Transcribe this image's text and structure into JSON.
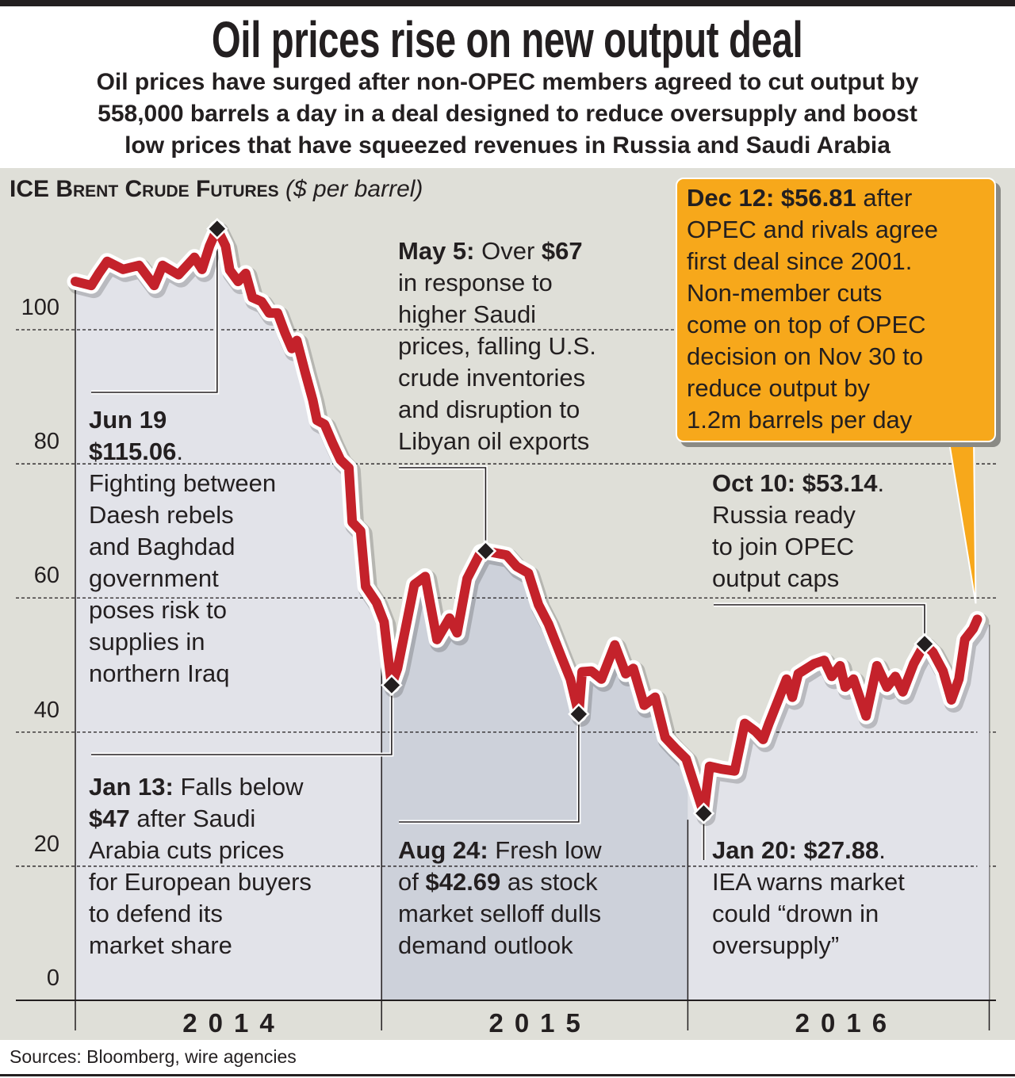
{
  "title": "Oil prices rise on new output deal",
  "subtitle_lines": [
    "Oil prices have surged after non-OPEC members agreed to cut output by",
    "558,000 barrels a day in a deal designed to reduce oversupply and boost",
    "low prices that have squeezed revenues in Russia and Saudi Arabia"
  ],
  "source": "Sources: Bloomberg, wire agencies",
  "colors": {
    "line": "#c4222b",
    "panel": "#dfdfd8",
    "fill_2014": "#e2e3e9",
    "fill_2015": "#cdd1da",
    "fill_2016": "#e2e3e9",
    "callout": "#f7a81b",
    "marker": "#231f20"
  },
  "chart_data": {
    "type": "line",
    "title": "ICE Brent Crude Futures",
    "ylabel": "($ per barrel)",
    "ylim": [
      0,
      120
    ],
    "yticks": [
      0,
      20,
      40,
      60,
      80,
      100
    ],
    "xlim": [
      "2014-01-01",
      "2017-01-01"
    ],
    "x_categories": [
      "2014",
      "2015",
      "2016"
    ],
    "grid": "horizontal dashed",
    "series": [
      {
        "points": [
          [
            "2014-01-01",
            107.2
          ],
          [
            "2014-01-20",
            106.6
          ],
          [
            "2014-01-29",
            108.4
          ],
          [
            "2014-02-08",
            110.2
          ],
          [
            "2014-02-27",
            109.0
          ],
          [
            "2014-03-18",
            109.6
          ],
          [
            "2014-04-05",
            106.6
          ],
          [
            "2014-04-15",
            109.6
          ],
          [
            "2014-05-04",
            108.2
          ],
          [
            "2014-05-23",
            110.8
          ],
          [
            "2014-06-01",
            109.0
          ],
          [
            "2014-06-10",
            112.5
          ],
          [
            "2014-06-19",
            115.06
          ],
          [
            "2014-06-29",
            112.5
          ],
          [
            "2014-07-04",
            108.9
          ],
          [
            "2014-07-14",
            107.2
          ],
          [
            "2014-07-23",
            108.4
          ],
          [
            "2014-07-31",
            104.8
          ],
          [
            "2014-08-11",
            104.2
          ],
          [
            "2014-08-20",
            102.5
          ],
          [
            "2014-08-30",
            102.5
          ],
          [
            "2014-09-08",
            99.5
          ],
          [
            "2014-09-16",
            97.2
          ],
          [
            "2014-09-22",
            98.4
          ],
          [
            "2014-10-02",
            93.6
          ],
          [
            "2014-10-11",
            89.5
          ],
          [
            "2014-10-16",
            86.5
          ],
          [
            "2014-10-25",
            85.9
          ],
          [
            "2014-11-04",
            83.0
          ],
          [
            "2014-11-13",
            80.6
          ],
          [
            "2014-11-23",
            79.4
          ],
          [
            "2014-11-27",
            71.3
          ],
          [
            "2014-12-07",
            70.0
          ],
          [
            "2014-12-13",
            61.7
          ],
          [
            "2014-12-26",
            59.3
          ],
          [
            "2015-01-04",
            56.4
          ],
          [
            "2015-01-09",
            51.0
          ],
          [
            "2015-01-13",
            47.0
          ],
          [
            "2015-01-20",
            49.5
          ],
          [
            "2015-02-09",
            62.0
          ],
          [
            "2015-02-22",
            63.2
          ],
          [
            "2015-03-08",
            53.8
          ],
          [
            "2015-03-23",
            57.0
          ],
          [
            "2015-04-01",
            54.8
          ],
          [
            "2015-04-13",
            62.9
          ],
          [
            "2015-04-29",
            66.8
          ],
          [
            "2015-05-05",
            67.0
          ],
          [
            "2015-05-30",
            66.4
          ],
          [
            "2015-06-11",
            64.7
          ],
          [
            "2015-06-25",
            63.7
          ],
          [
            "2015-07-07",
            59.0
          ],
          [
            "2015-07-19",
            56.1
          ],
          [
            "2015-08-04",
            51.0
          ],
          [
            "2015-08-14",
            47.9
          ],
          [
            "2015-08-24",
            42.69
          ],
          [
            "2015-08-28",
            49.0
          ],
          [
            "2015-09-08",
            49.1
          ],
          [
            "2015-09-20",
            47.9
          ],
          [
            "2015-10-06",
            53.0
          ],
          [
            "2015-10-19",
            48.7
          ],
          [
            "2015-10-28",
            49.5
          ],
          [
            "2015-11-10",
            44.0
          ],
          [
            "2015-11-23",
            45.2
          ],
          [
            "2015-12-05",
            39.2
          ],
          [
            "2015-12-17",
            37.6
          ],
          [
            "2015-12-30",
            36.0
          ],
          [
            "2016-01-20",
            27.88
          ],
          [
            "2016-01-27",
            34.9
          ],
          [
            "2016-02-10",
            34.5
          ],
          [
            "2016-02-26",
            34.2
          ],
          [
            "2016-03-09",
            41.3
          ],
          [
            "2016-03-22",
            40.1
          ],
          [
            "2016-03-31",
            38.9
          ],
          [
            "2016-04-07",
            41.3
          ],
          [
            "2016-04-28",
            47.9
          ],
          [
            "2016-05-05",
            45.2
          ],
          [
            "2016-05-12",
            48.7
          ],
          [
            "2016-05-31",
            50.2
          ],
          [
            "2016-06-12",
            50.7
          ],
          [
            "2016-06-21",
            48.3
          ],
          [
            "2016-07-01",
            49.9
          ],
          [
            "2016-07-07",
            46.7
          ],
          [
            "2016-07-17",
            47.9
          ],
          [
            "2016-08-01",
            42.4
          ],
          [
            "2016-08-14",
            49.9
          ],
          [
            "2016-08-26",
            46.7
          ],
          [
            "2016-09-05",
            48.3
          ],
          [
            "2016-09-14",
            46.0
          ],
          [
            "2016-09-27",
            50.2
          ],
          [
            "2016-10-10",
            53.14
          ],
          [
            "2016-10-20",
            51.9
          ],
          [
            "2016-11-01",
            49.1
          ],
          [
            "2016-11-11",
            44.8
          ],
          [
            "2016-11-20",
            47.9
          ],
          [
            "2016-11-27",
            53.8
          ],
          [
            "2016-12-07",
            55.4
          ],
          [
            "2016-12-12",
            56.81
          ]
        ]
      }
    ],
    "markers": [
      {
        "id": "jun19",
        "date": "2014-06-19",
        "value": 115.06
      },
      {
        "id": "jan13",
        "date": "2015-01-13",
        "value": 47
      },
      {
        "id": "may5",
        "date": "2015-05-05",
        "value": 67
      },
      {
        "id": "aug24",
        "date": "2015-08-24",
        "value": 42.69
      },
      {
        "id": "jan20",
        "date": "2016-01-20",
        "value": 27.88
      },
      {
        "id": "oct10",
        "date": "2016-10-10",
        "value": 53.14
      }
    ],
    "annotations": {
      "jun19": [
        {
          "b": "Jun 19",
          "t": ""
        },
        {
          "b": "$115.06",
          "t": "."
        },
        {
          "b": "",
          "t": "Fighting between"
        },
        {
          "b": "",
          "t": "Daesh rebels"
        },
        {
          "b": "",
          "t": "and Baghdad"
        },
        {
          "b": "",
          "t": "government"
        },
        {
          "b": "",
          "t": "poses risk to"
        },
        {
          "b": "",
          "t": "supplies in"
        },
        {
          "b": "",
          "t": "northern Iraq"
        }
      ],
      "jan13": [
        {
          "b": "Jan 13:",
          "t": " Falls below"
        },
        {
          "b": "$47",
          "t": " after Saudi"
        },
        {
          "b": "",
          "t": "Arabia cuts prices"
        },
        {
          "b": "",
          "t": "for European buyers"
        },
        {
          "b": "",
          "t": "to defend its"
        },
        {
          "b": "",
          "t": "market share"
        }
      ],
      "may5": [
        {
          "b": "May 5:",
          "t": " Over "
        },
        {
          "b": "",
          "t": "in response to"
        },
        {
          "b": "",
          "t": "higher Saudi"
        },
        {
          "b": "",
          "t": "prices, falling U.S."
        },
        {
          "b": "",
          "t": "crude inventories"
        },
        {
          "b": "",
          "t": "and disruption to"
        },
        {
          "b": "",
          "t": "Libyan oil exports"
        }
      ],
      "may5_price": "$67",
      "aug24": [
        {
          "b": "Aug 24:",
          "t": " Fresh low"
        },
        {
          "b": "",
          "t": "of "
        },
        {
          "b": "",
          "t": "market selloff dulls"
        },
        {
          "b": "",
          "t": "demand outlook"
        }
      ],
      "aug24_price": "$42.69",
      "aug24_after": " as stock",
      "oct10": [
        {
          "b": "Oct 10: $53.14",
          "t": "."
        },
        {
          "b": "",
          "t": "Russia ready"
        },
        {
          "b": "",
          "t": "to join OPEC"
        },
        {
          "b": "",
          "t": "output caps"
        }
      ],
      "jan20": [
        {
          "b": "Jan 20: $27.88",
          "t": "."
        },
        {
          "b": "",
          "t": "IEA warns market"
        },
        {
          "b": "",
          "t": "could “drown in"
        },
        {
          "b": "",
          "t": "oversupply”"
        }
      ],
      "dec12": [
        {
          "b": "Dec 12: $56.81",
          "t": " after"
        },
        {
          "b": "",
          "t": "OPEC and rivals agree"
        },
        {
          "b": "",
          "t": "first deal since 2001."
        },
        {
          "b": "",
          "t": "Non-member cuts"
        },
        {
          "b": "",
          "t": "come on top of OPEC"
        },
        {
          "b": "",
          "t": "decision on Nov 30 to"
        },
        {
          "b": "",
          "t": "reduce output by"
        },
        {
          "b": "",
          "t": "1.2m barrels per day"
        }
      ]
    }
  }
}
